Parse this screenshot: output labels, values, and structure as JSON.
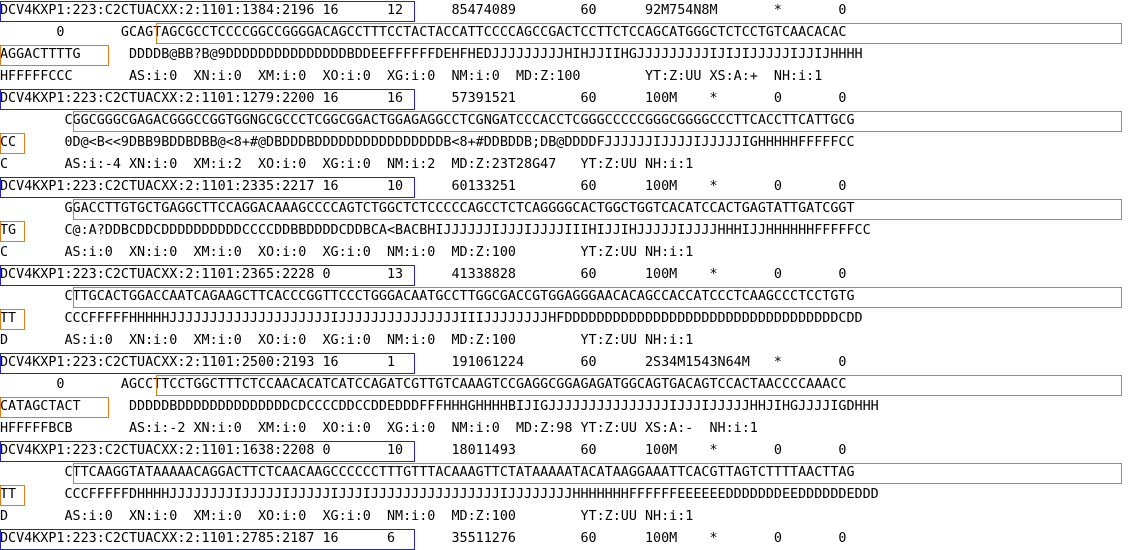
{
  "colors": {
    "read_name_box": "#2323c8",
    "sequence_box": "#e07b16",
    "text": "#000000",
    "background": "#ffffff"
  },
  "lines": [
    "DCV4KXP1:223:C2CTUACXX:2:1101:1384:2196 16      12      85474089        60      92M754N8M       *       0",
    "       0       GCAGTAGCGCCTCCCCGGCCGGGGACAGCCTTTCCTACTACCATTCCCCAGCCGACTCCTTCTCCAGCATGGGCTCTCCTGTCAACACAC",
    "AGGACTTTTG      DDDDB@BB?B@9DDDDDDDDDDDDDDDBDDEEFFFFFFDEHFHEDJJJJJJJJJHIHJJIIHGJJJJJJJJJIJIJIJJJJJIJJIJHHHH",
    "HFFFFFCCC       AS:i:0  XN:i:0  XM:i:0  XO:i:0  XG:i:0  NM:i:0  MD:Z:100        YT:Z:UU XS:A:+  NH:i:1",
    "DCV4KXP1:223:C2CTUACXX:2:1101:1279:2200 16      16      57391521        60      100M    *       0       0",
    "        CGGCGGGCGAGACGGGCCGGTGGNGCGCCCTCGGCGGACTGGAGAGGCCTCGNGATCCCACCTCGGGCCCCCGGGCGGGGCCCTTCACCTTCATTGCG",
    "CC      0D@<B<<9DBB9BDDBDBB@<8+#@DBDDDBDDDDDDDDDDDDDDDDB<8+#DDBDDB;DB@DDDDFJJJJJJIJJJJIJJJJJIGHHHHHFFFFFCC",
    "C       AS:i:-4 XN:i:0  XM:i:2  XO:i:0  XG:i:0  NM:i:2  MD:Z:23T28G47   YT:Z:UU NH:i:1",
    "DCV4KXP1:223:C2CTUACXX:2:1101:2335:2217 16      10      60133251        60      100M    *       0       0",
    "        GGACCTTGTGCTGAGGCTTCCAGGACAAAGCCCCAGTCTGGCTCTCCCCCAGCCTCTCAGGGGCACTGGCTGGTCACATCCACTGAGTATTGATCGGT",
    "TG      C@:A?DDBCDDCDDDDDDDDDDCCCCDDBBDDDDCDDBCA<BACBHIJJJJJJIJJJIJJJJIIIHIJJIHJJJJJIJJJJHHHIJJHHHHHHFFFFFCC",
    "C       AS:i:0  XN:i:0  XM:i:0  XO:i:0  XG:i:0  NM:i:0  MD:Z:100        YT:Z:UU NH:i:1",
    "DCV4KXP1:223:C2CTUACXX:2:1101:2365:2228 0       13      41338828        60      100M    *       0       0",
    "        CTTGCACTGGACCAATCAGAAGCTTCACCCGGTTCCCTGGGACAATGCCTTGGCGACCGTGGAGGGAACACAGCCACCATCCCTCAAGCCCTCCTGTG",
    "TT      CCCFFFFFHHHHHJJJJJJJJJJJJJJJJJJJJIJJJJJJJJJJJJJJJIIIJJJJJJJJHFDDDDDDDDDDDDDDDDDDDDDDDDDDDDDDDDDDCDD",
    "D       AS:i:0  XN:i:0  XM:i:0  XO:i:0  XG:i:0  NM:i:0  MD:Z:100        YT:Z:UU NH:i:1",
    "DCV4KXP1:223:C2CTUACXX:2:1101:2500:2193 16      1       191061224       60      2S34M1543N64M   *       0",
    "       0       AGCCTTCCTGGCTTTCTCCAACACATCATCCAGATCGTTGTCAAAGTCCGAGGCGGAGAGATGGCAGTGACAGTCCACTAACCCCAAACC",
    "CATAGCTACT      DDDDDBDDDDDDDDDDDDDDCDCCCCDDCCDDEDDDFFFHHHGHHHHBIJIGJJJJJJJJJJJJJJJIJJJIJJJJJHHJIHGJJJJIGDHHH",
    "HFFFFFBCB       AS:i:-2 XN:i:0  XM:i:0  XO:i:0  XG:i:0  NM:i:0  MD:Z:98 YT:Z:UU XS:A:-  NH:i:1",
    "DCV4KXP1:223:C2CTUACXX:2:1101:1638:2208 0       10      18011493        60      100M    *       0       0",
    "        CTTCAAGGTATAAAAACAGGACTTCTCAACAAGCCCCCCTTTGTTTACAAAGTTCTATAAAAATACATAAGGAAATTCACGTTAGTCTTTTAACTTAG",
    "TT      CCCFFFFFDHHHHJJJJJJJJIJJJJJIJJJJJIJJJIJJJJJJJJJJJJJJJJIJJJJJJJJHHHHHHHFFFFFFEEEEEEDDDDDDDEEDDDDDDEDDD",
    "D       AS:i:0  XN:i:0  XM:i:0  XO:i:0  XG:i:0  NM:i:0  MD:Z:100        YT:Z:UU NH:i:1",
    "DCV4KXP1:223:C2CTUACXX:2:1101:2785:2187 16      6       35511276        60      100M    *       0       0"
  ]
}
